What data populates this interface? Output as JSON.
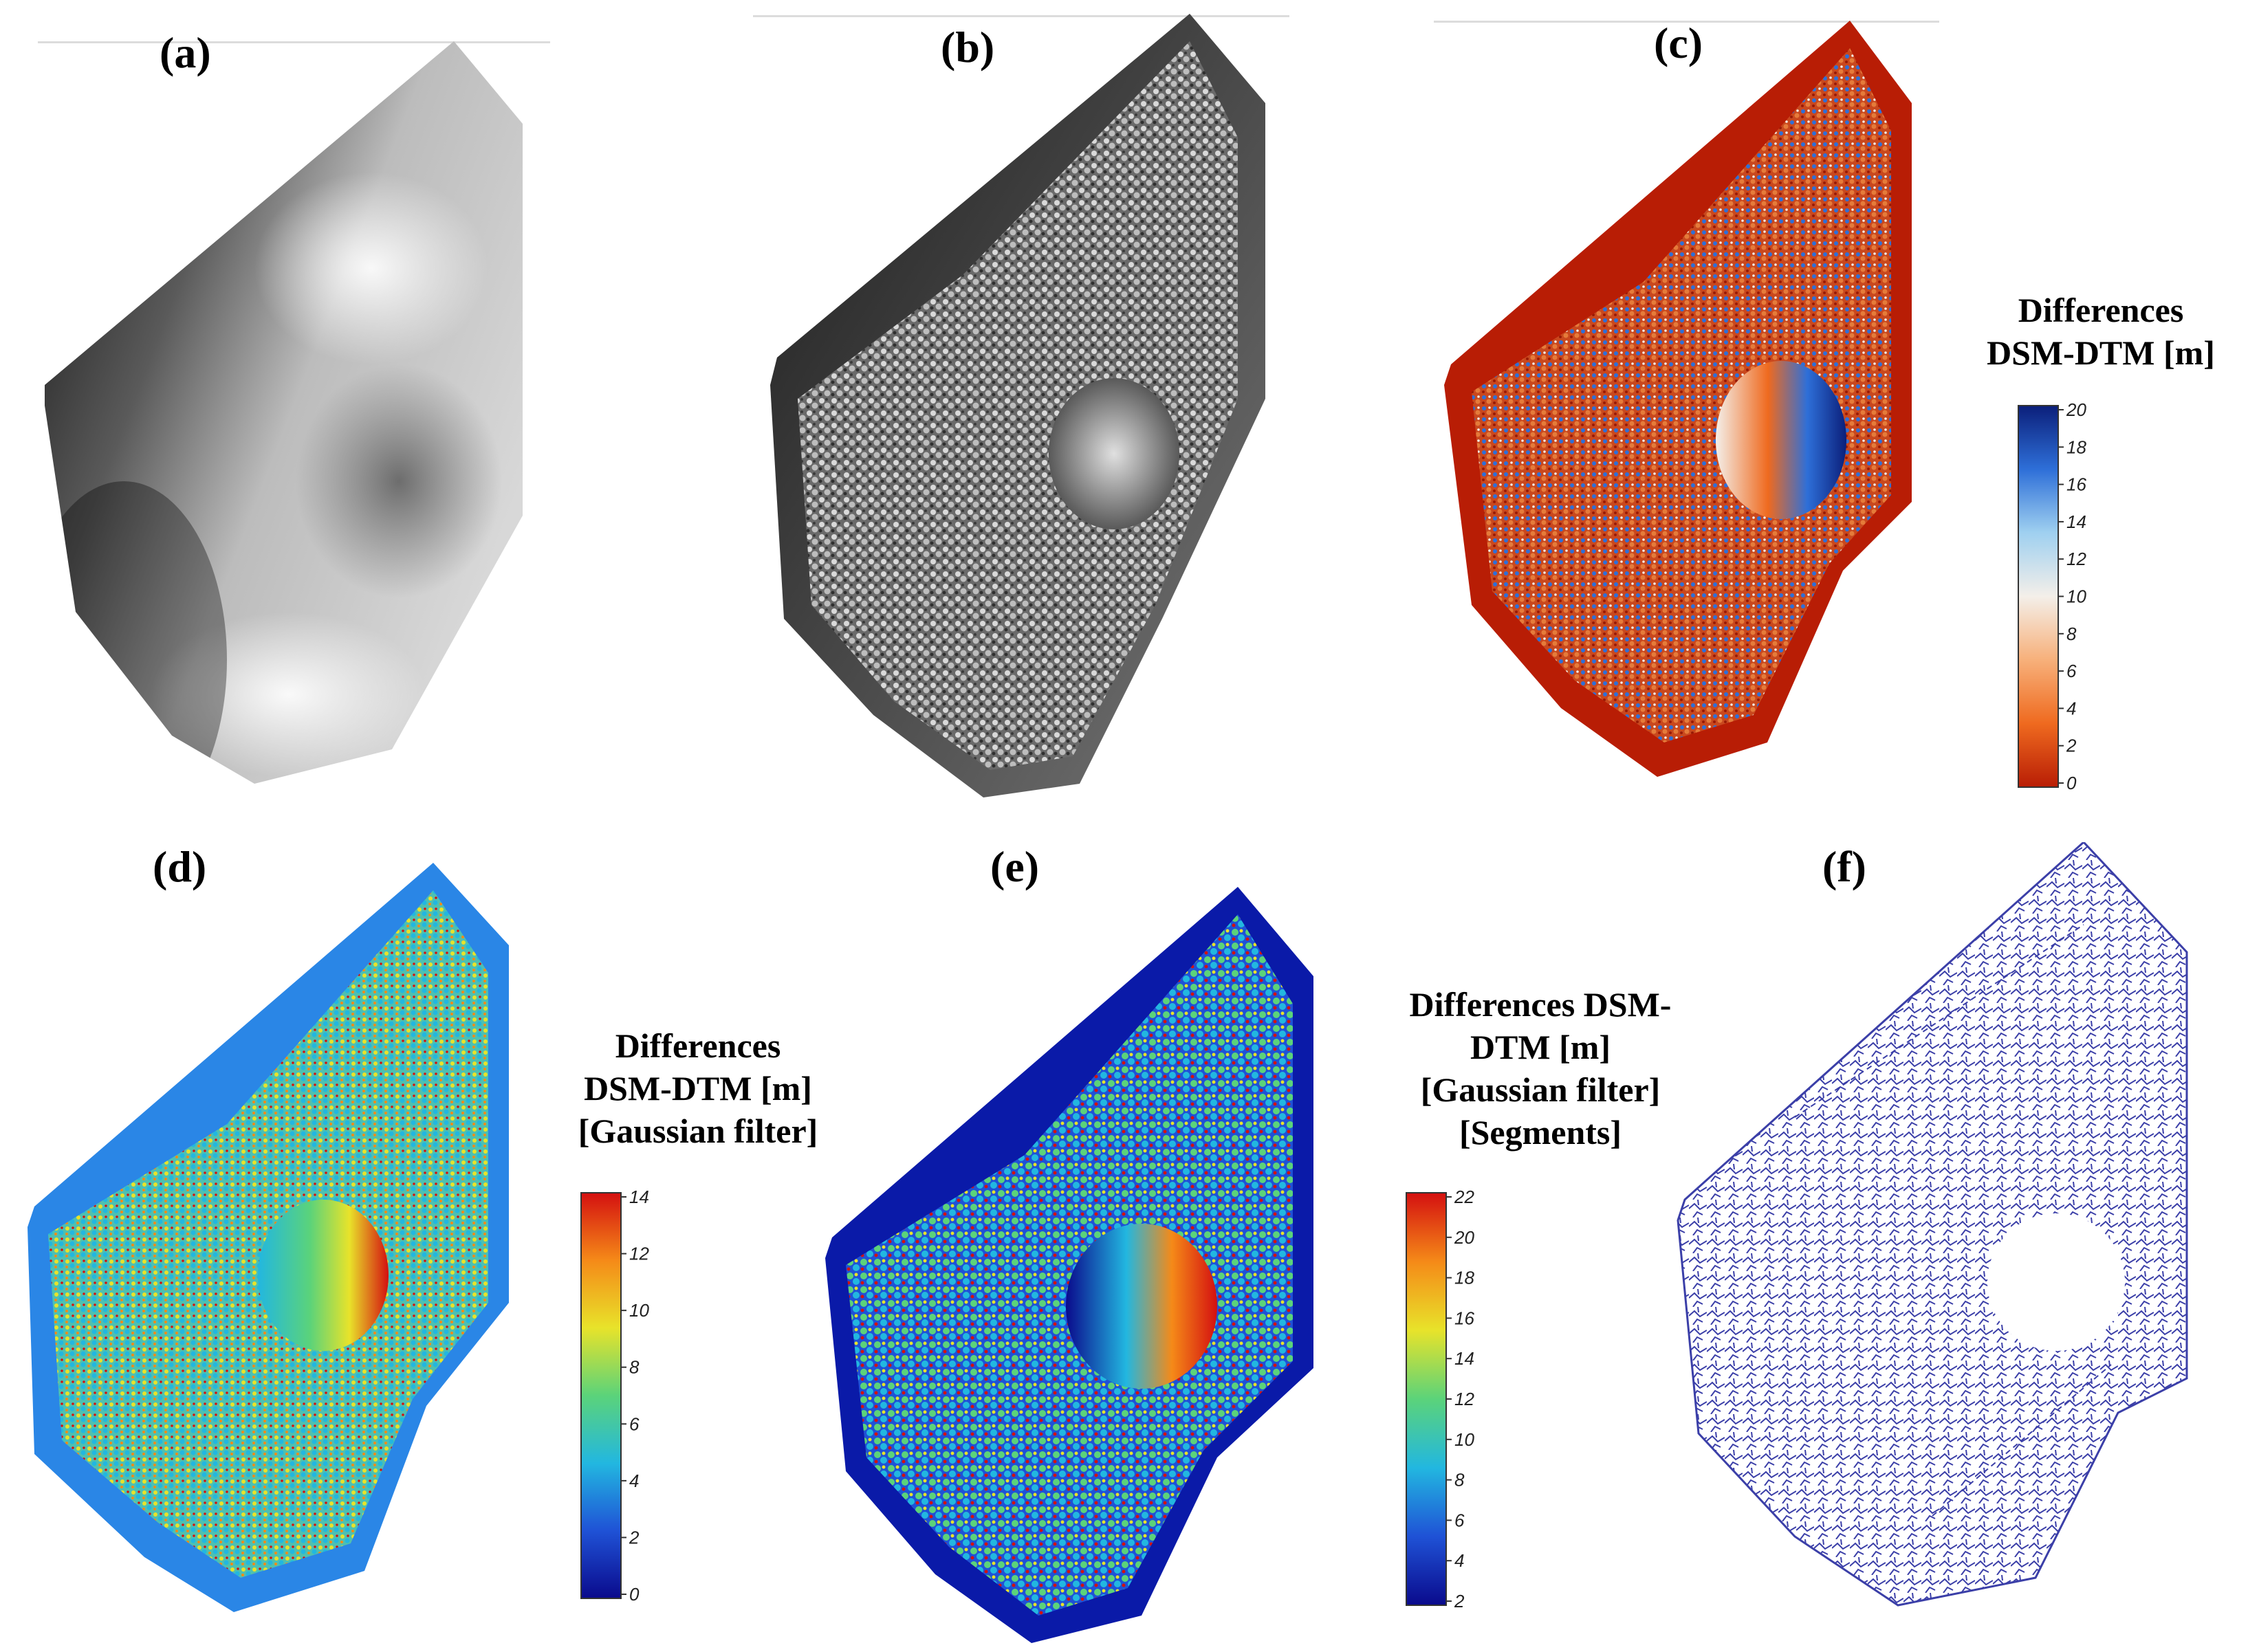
{
  "figure": {
    "panels": [
      {
        "id": "a",
        "label": "(a)"
      },
      {
        "id": "b",
        "label": "(b)"
      },
      {
        "id": "c",
        "label": "(c)"
      },
      {
        "id": "d",
        "label": "(d)"
      },
      {
        "id": "e",
        "label": "(e)"
      },
      {
        "id": "f",
        "label": "(f)"
      }
    ]
  },
  "colorbars": {
    "c": {
      "title_lines": [
        "Differences",
        "DSM-DTM [m]"
      ],
      "ticks": [
        "20",
        "18",
        "16",
        "14",
        "12",
        "10",
        "8",
        "6",
        "4",
        "2",
        "0"
      ],
      "colors": [
        "#0b1f7a",
        "#2e6fd8",
        "#9fd0f0",
        "#f4efe9",
        "#f7b07a",
        "#ef6a1f",
        "#b81d05"
      ]
    },
    "d": {
      "title_lines": [
        "Differences",
        "DSM-DTM [m]",
        "[Gaussian filter]"
      ],
      "ticks": [
        "14",
        "12",
        "10",
        "8",
        "6",
        "4",
        "2",
        "0"
      ],
      "colors": [
        "#d41010",
        "#f58a18",
        "#e8e32a",
        "#5bd37a",
        "#22b7e0",
        "#1f52d6",
        "#0a0a8c"
      ]
    },
    "e": {
      "title_lines": [
        "Differences DSM-",
        "DTM [m]",
        "[Gaussian filter]",
        "[Segments]"
      ],
      "ticks": [
        "22",
        "20",
        "18",
        "16",
        "14",
        "12",
        "10",
        "8",
        "6",
        "4",
        "2"
      ],
      "colors": [
        "#d41010",
        "#f58a18",
        "#e8e32a",
        "#5bd37a",
        "#22b7e0",
        "#1f52d6",
        "#0a0a8c"
      ]
    }
  }
}
